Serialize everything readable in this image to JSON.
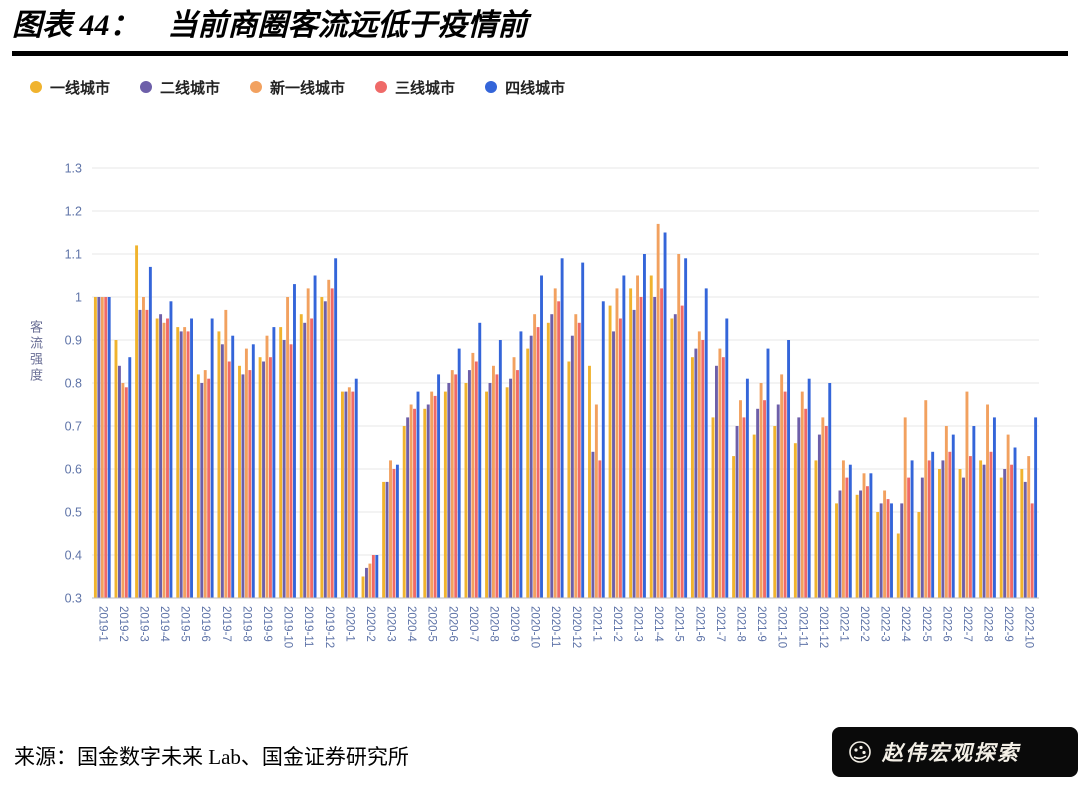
{
  "header": {
    "figure_label": "图表 44：",
    "title": "当前商圈客流远低于疫情前"
  },
  "chart_data": {
    "type": "bar",
    "title": "当前商圈客流远低于疫情前",
    "xlabel": "",
    "ylabel": "客流强度",
    "ylim": [
      0.3,
      1.3
    ],
    "ytick_step": 0.1,
    "grid": true,
    "legend_position": "top-left",
    "categories": [
      "2019-1",
      "2019-2",
      "2019-3",
      "2019-4",
      "2019-5",
      "2019-6",
      "2019-7",
      "2019-8",
      "2019-9",
      "2019-10",
      "2019-11",
      "2019-12",
      "2020-1",
      "2020-2",
      "2020-3",
      "2020-4",
      "2020-5",
      "2020-6",
      "2020-7",
      "2020-8",
      "2020-9",
      "2020-10",
      "2020-11",
      "2020-12",
      "2021-1",
      "2021-2",
      "2021-3",
      "2021-4",
      "2021-5",
      "2021-6",
      "2021-7",
      "2021-8",
      "2021-9",
      "2021-10",
      "2021-11",
      "2021-12",
      "2022-1",
      "2022-2",
      "2022-3",
      "2022-4",
      "2022-5",
      "2022-6",
      "2022-7",
      "2022-8",
      "2022-9",
      "2022-10"
    ],
    "series": [
      {
        "name": "一线城市",
        "color": "#F0B32E",
        "values": [
          1.0,
          0.9,
          1.12,
          0.95,
          0.93,
          0.82,
          0.92,
          0.84,
          0.86,
          0.93,
          0.96,
          1.0,
          0.78,
          0.35,
          0.57,
          0.7,
          0.74,
          0.78,
          0.8,
          0.78,
          0.79,
          0.88,
          0.94,
          0.85,
          0.84,
          0.98,
          1.02,
          1.05,
          0.95,
          0.86,
          0.72,
          0.63,
          0.68,
          0.7,
          0.66,
          0.62,
          0.52,
          0.54,
          0.5,
          0.45,
          0.5,
          0.6,
          0.6,
          0.62,
          0.58,
          0.6
        ]
      },
      {
        "name": "二线城市",
        "color": "#6D5FA9",
        "values": [
          1.0,
          0.84,
          0.97,
          0.96,
          0.92,
          0.8,
          0.89,
          0.82,
          0.85,
          0.9,
          0.94,
          0.99,
          0.78,
          0.37,
          0.57,
          0.72,
          0.75,
          0.8,
          0.83,
          0.8,
          0.81,
          0.91,
          0.96,
          0.91,
          0.64,
          0.92,
          0.97,
          1.0,
          0.96,
          0.88,
          0.84,
          0.7,
          0.74,
          0.75,
          0.72,
          0.68,
          0.55,
          0.55,
          0.52,
          0.52,
          0.58,
          0.62,
          0.58,
          0.61,
          0.6,
          0.57
        ]
      },
      {
        "name": "新一线城市",
        "color": "#F2A15F",
        "values": [
          1.0,
          0.8,
          1.0,
          0.94,
          0.93,
          0.83,
          0.97,
          0.88,
          0.91,
          1.0,
          1.02,
          1.04,
          0.79,
          0.38,
          0.62,
          0.75,
          0.78,
          0.83,
          0.87,
          0.84,
          0.86,
          0.96,
          1.02,
          0.96,
          0.75,
          1.02,
          1.05,
          1.17,
          1.1,
          0.92,
          0.88,
          0.76,
          0.8,
          0.82,
          0.78,
          0.72,
          0.62,
          0.59,
          0.55,
          0.72,
          0.76,
          0.7,
          0.78,
          0.75,
          0.68,
          0.63
        ]
      },
      {
        "name": "三线城市",
        "color": "#EF6A68",
        "values": [
          1.0,
          0.79,
          0.97,
          0.95,
          0.92,
          0.81,
          0.85,
          0.83,
          0.86,
          0.89,
          0.95,
          1.02,
          0.78,
          0.4,
          0.6,
          0.74,
          0.77,
          0.82,
          0.85,
          0.82,
          0.83,
          0.93,
          0.99,
          0.94,
          0.62,
          0.95,
          1.0,
          1.02,
          0.98,
          0.9,
          0.86,
          0.72,
          0.76,
          0.78,
          0.74,
          0.7,
          0.58,
          0.56,
          0.53,
          0.58,
          0.62,
          0.64,
          0.63,
          0.64,
          0.61,
          0.52
        ]
      },
      {
        "name": "四线城市",
        "color": "#3465D9",
        "values": [
          1.0,
          0.86,
          1.07,
          0.99,
          0.95,
          0.95,
          0.91,
          0.89,
          0.93,
          1.03,
          1.05,
          1.09,
          0.81,
          0.4,
          0.61,
          0.78,
          0.82,
          0.88,
          0.94,
          0.9,
          0.92,
          1.05,
          1.09,
          1.08,
          0.99,
          1.05,
          1.1,
          1.15,
          1.09,
          1.02,
          0.95,
          0.81,
          0.88,
          0.9,
          0.81,
          0.8,
          0.61,
          0.59,
          0.52,
          0.62,
          0.64,
          0.68,
          0.7,
          0.72,
          0.65,
          0.72
        ]
      }
    ]
  },
  "footer": {
    "source": "来源：国金数字未来 Lab、国金证券研究所",
    "brand": "赵伟宏观探索"
  }
}
